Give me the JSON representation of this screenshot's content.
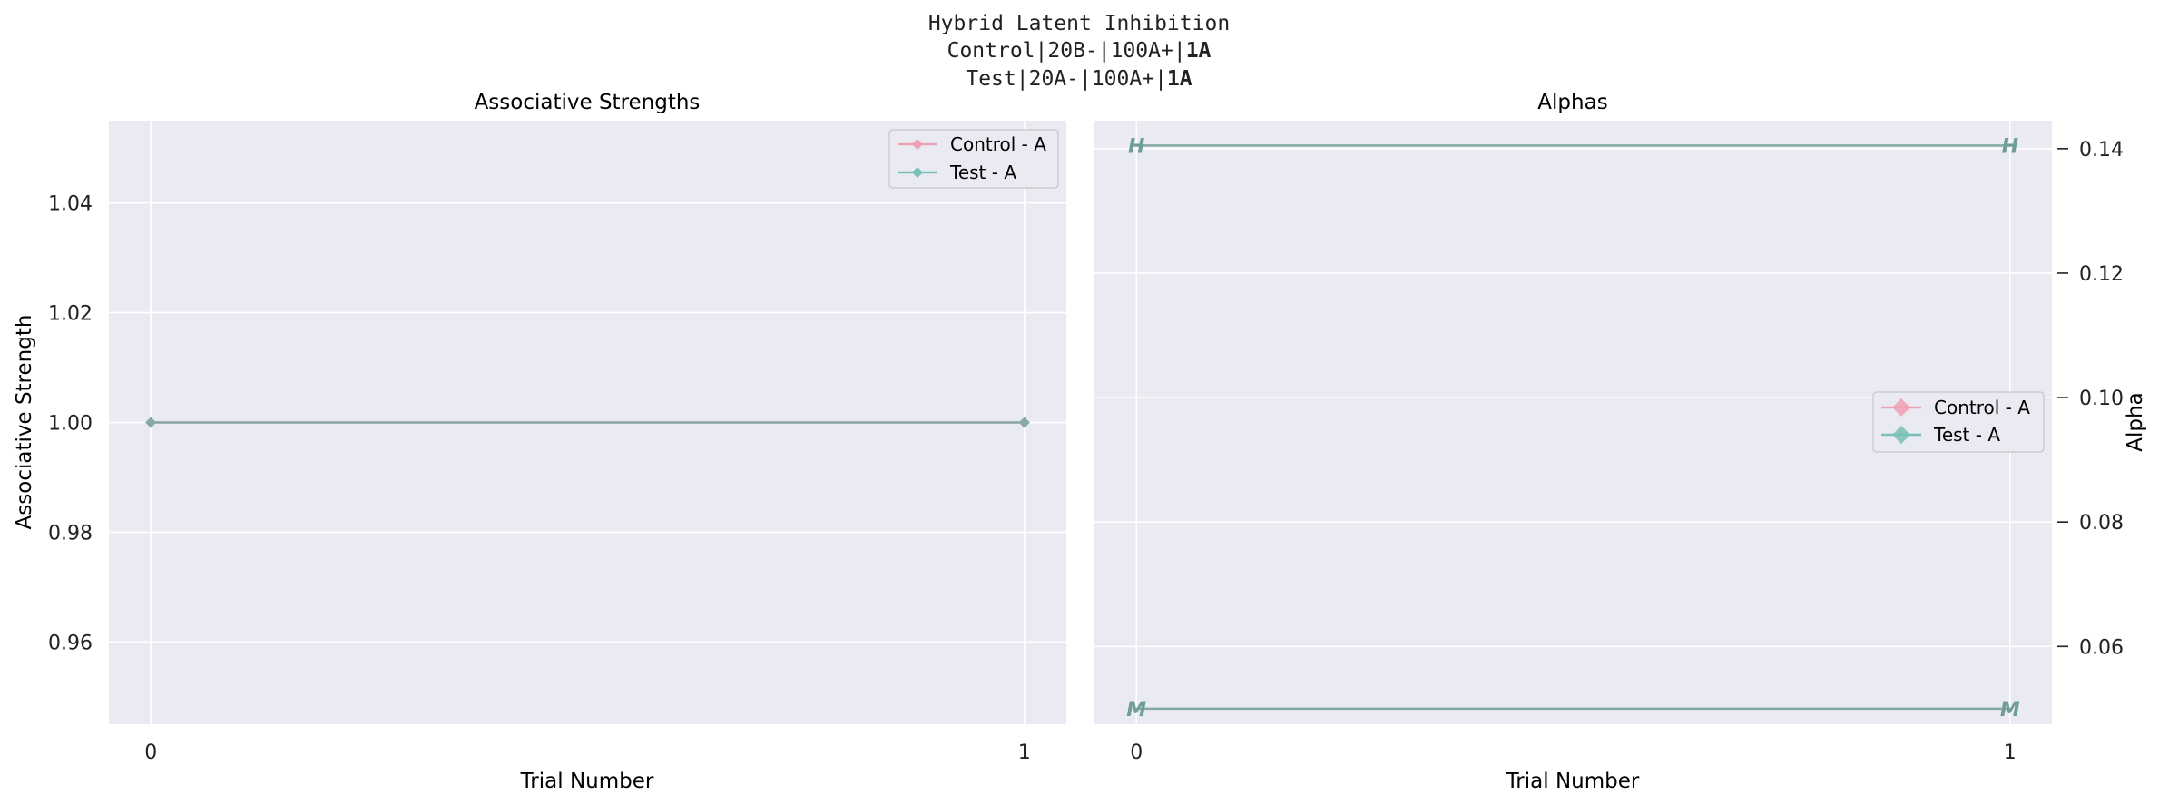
{
  "figure": {
    "title_lines": [
      {
        "plain": "Hybrid Latent Inhibition",
        "bold": ""
      },
      {
        "plain": "Control|20B-|100A+|",
        "bold": "1A"
      },
      {
        "plain": "Test|20A-|100A+|",
        "bold": "1A"
      }
    ]
  },
  "colors": {
    "background": "#eaeaf2",
    "grid": "#ffffff",
    "control": "#f0a0b4",
    "test": "#79bfb6",
    "overlap_line": "#85aaa3",
    "marker_text": "#6f9e98"
  },
  "chart_data": [
    {
      "type": "line",
      "title": "Associative Strengths",
      "xlabel": "Trial Number",
      "ylabel": "Associative Strength",
      "x": [
        0,
        1
      ],
      "xlim": [
        -0.048,
        1.048
      ],
      "ylim": [
        0.945,
        1.055
      ],
      "xticks": [
        0,
        1
      ],
      "yticks": [
        0.96,
        0.98,
        1.0,
        1.02,
        1.04
      ],
      "ytick_labels": [
        "0.96",
        "0.98",
        "1.00",
        "1.02",
        "1.04"
      ],
      "grid": true,
      "legend_position": "upper right",
      "series": [
        {
          "name": "Control - A",
          "values": [
            1.0,
            1.0
          ],
          "marker": "diamond"
        },
        {
          "name": "Test - A",
          "values": [
            1.0,
            1.0
          ],
          "marker": "diamond"
        }
      ]
    },
    {
      "type": "line",
      "title": "Alphas",
      "xlabel": "Trial Number",
      "ylabel": "Alpha",
      "x": [
        0,
        1
      ],
      "xlim": [
        -0.048,
        1.048
      ],
      "ylim": [
        0.0475,
        0.1445
      ],
      "xticks": [
        0,
        1
      ],
      "yticks": [
        0.06,
        0.08,
        0.1,
        0.12,
        0.14
      ],
      "ytick_labels": [
        "0.06",
        "0.08",
        "0.10",
        "0.12",
        "0.14"
      ],
      "y_axis_side": "right",
      "grid": true,
      "legend_position": "center right",
      "legend_series": [
        {
          "name": "Control - A",
          "marker": "diamond"
        },
        {
          "name": "Test - A",
          "marker": "diamond"
        }
      ],
      "lines": [
        {
          "values": [
            0.1405,
            0.1405
          ],
          "marker_label": "H"
        },
        {
          "values": [
            0.05,
            0.05
          ],
          "marker_label": "M"
        }
      ]
    }
  ]
}
